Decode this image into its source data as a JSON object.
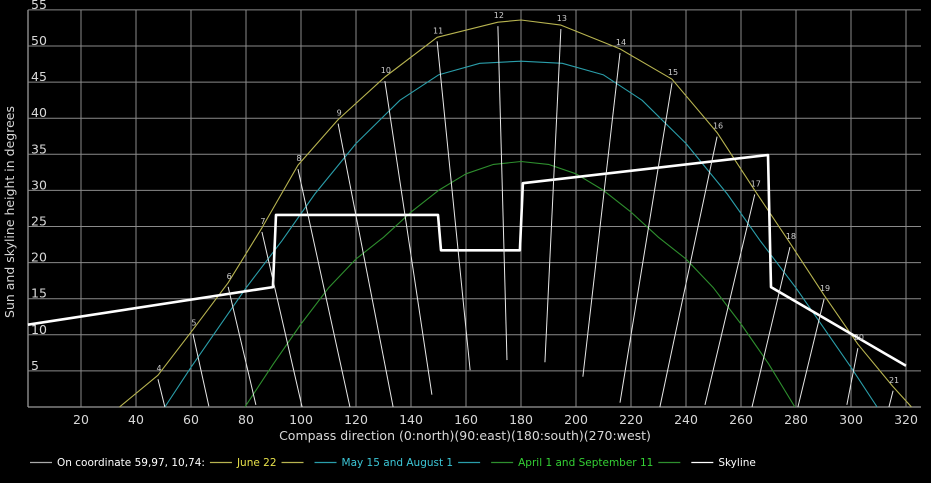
{
  "chart_data": {
    "type": "line",
    "xlabel": "Compass direction (0:north)(90:east)(180:south)(270:west)",
    "ylabel": "Sun and skyline height in degrees",
    "xlim": [
      0,
      322
    ],
    "ylim": [
      0,
      55
    ],
    "xticks": [
      20,
      40,
      60,
      80,
      100,
      120,
      140,
      160,
      180,
      200,
      220,
      240,
      260,
      280,
      300,
      320
    ],
    "yticks": [
      5,
      10,
      15,
      20,
      25,
      30,
      35,
      40,
      45,
      50,
      55
    ],
    "grid": true,
    "legend_position": "bottom",
    "legend_prefix": "On coordinate 59,97, 10,74:",
    "series": [
      {
        "name": "June 22",
        "color": "#b8b450",
        "label_color": "#e6e04a",
        "points": [
          [
            34,
            0
          ],
          [
            48,
            4.4
          ],
          [
            60.7,
            10.7
          ],
          [
            73.5,
            17.2
          ],
          [
            85.8,
            24.8
          ],
          [
            98.9,
            33.5
          ],
          [
            113.5,
            39.8
          ],
          [
            130.5,
            45.7
          ],
          [
            149.5,
            51.2
          ],
          [
            171.6,
            53.3
          ],
          [
            180,
            53.6
          ],
          [
            194.5,
            52.9
          ],
          [
            216,
            49.6
          ],
          [
            234.9,
            45.4
          ],
          [
            251.3,
            38
          ],
          [
            265,
            30
          ],
          [
            277.8,
            22.7
          ],
          [
            290.2,
            15.5
          ],
          [
            302.5,
            8.7
          ],
          [
            315.3,
            2.8
          ],
          [
            322,
            0
          ]
        ]
      },
      {
        "name": "May 15 and August 1",
        "color": "#2a9eaa",
        "label_color": "#3cc6d6",
        "points": [
          [
            50.5,
            0
          ],
          [
            60,
            5.5
          ],
          [
            70,
            11
          ],
          [
            80,
            16.5
          ],
          [
            93,
            23
          ],
          [
            105,
            29.5
          ],
          [
            120,
            36.5
          ],
          [
            136,
            42.5
          ],
          [
            150,
            46
          ],
          [
            165,
            47.6
          ],
          [
            180,
            47.9
          ],
          [
            195,
            47.6
          ],
          [
            210,
            46
          ],
          [
            224,
            42.5
          ],
          [
            240,
            36.5
          ],
          [
            255,
            29.5
          ],
          [
            267,
            23
          ],
          [
            280,
            16.5
          ],
          [
            290,
            11
          ],
          [
            300,
            5.5
          ],
          [
            309.5,
            0
          ]
        ]
      },
      {
        "name": "April 1 and September 11",
        "color": "#2e8f2e",
        "label_color": "#34d034",
        "points": [
          [
            79.6,
            0
          ],
          [
            90,
            6
          ],
          [
            100,
            11.5
          ],
          [
            110,
            16.5
          ],
          [
            120,
            20.5
          ],
          [
            130,
            23.5
          ],
          [
            140,
            27
          ],
          [
            150,
            30
          ],
          [
            160,
            32.3
          ],
          [
            170,
            33.6
          ],
          [
            180,
            34
          ],
          [
            190,
            33.6
          ],
          [
            200,
            32.3
          ],
          [
            210,
            30
          ],
          [
            220,
            27
          ],
          [
            230,
            23.5
          ],
          [
            240,
            20.5
          ],
          [
            250,
            16.5
          ],
          [
            260,
            11.5
          ],
          [
            270,
            6
          ],
          [
            279.6,
            0
          ]
        ]
      },
      {
        "name": "Skyline",
        "color": "#ffffff",
        "label_color": "#ffffff",
        "points": [
          [
            0.7,
            11.4
          ],
          [
            89.8,
            16.6
          ],
          [
            90.9,
            26.6
          ],
          [
            149.8,
            26.6
          ],
          [
            150.9,
            21.7
          ],
          [
            179.6,
            21.7
          ],
          [
            180.7,
            31
          ],
          [
            269.8,
            34.9
          ],
          [
            270.9,
            16.6
          ],
          [
            320,
            5.7
          ]
        ]
      }
    ],
    "hour_lines": [
      {
        "hour": "4",
        "from": [
          48,
          4.4
        ],
        "to": [
          50.5,
          0
        ]
      },
      {
        "hour": "5",
        "from": [
          60.7,
          10.7
        ],
        "to": [
          66.5,
          0.1
        ]
      },
      {
        "hour": "6",
        "from": [
          73.5,
          17.2
        ],
        "to": [
          83.6,
          0.3
        ]
      },
      {
        "hour": "7",
        "from": [
          85.8,
          24.8
        ],
        "to": [
          100.4,
          0
        ]
      },
      {
        "hour": "8",
        "from": [
          98.9,
          33.5
        ],
        "to": [
          117.8,
          0
        ]
      },
      {
        "hour": "9",
        "from": [
          113.5,
          39.8
        ],
        "to": [
          133.5,
          0
        ]
      },
      {
        "hour": "10",
        "from": [
          130.5,
          45.7
        ],
        "to": [
          147.6,
          1.7
        ]
      },
      {
        "hour": "11",
        "from": [
          149.5,
          51.2
        ],
        "to": [
          161.5,
          5.1
        ]
      },
      {
        "hour": "12",
        "from": [
          171.6,
          53.3
        ],
        "to": [
          174.9,
          6.5
        ]
      },
      {
        "hour": "13",
        "from": [
          194.5,
          52.9
        ],
        "to": [
          188.7,
          6.2
        ]
      },
      {
        "hour": "14",
        "from": [
          216,
          49.6
        ],
        "to": [
          202.5,
          4.2
        ]
      },
      {
        "hour": "15",
        "from": [
          234.9,
          45.4
        ],
        "to": [
          216,
          0.6
        ]
      },
      {
        "hour": "16",
        "from": [
          251.3,
          38
        ],
        "to": [
          230.5,
          0
        ]
      },
      {
        "hour": "17",
        "from": [
          265,
          30
        ],
        "to": [
          246.9,
          0.3
        ]
      },
      {
        "hour": "18",
        "from": [
          277.8,
          22.7
        ],
        "to": [
          264,
          0
        ]
      },
      {
        "hour": "19",
        "from": [
          290.2,
          15.5
        ],
        "to": [
          280.7,
          0
        ]
      },
      {
        "hour": "20",
        "from": [
          302.5,
          8.7
        ],
        "to": [
          298.5,
          0.3
        ]
      },
      {
        "hour": "21",
        "from": [
          315.3,
          2.8
        ],
        "to": [
          313.8,
          0
        ]
      }
    ]
  }
}
